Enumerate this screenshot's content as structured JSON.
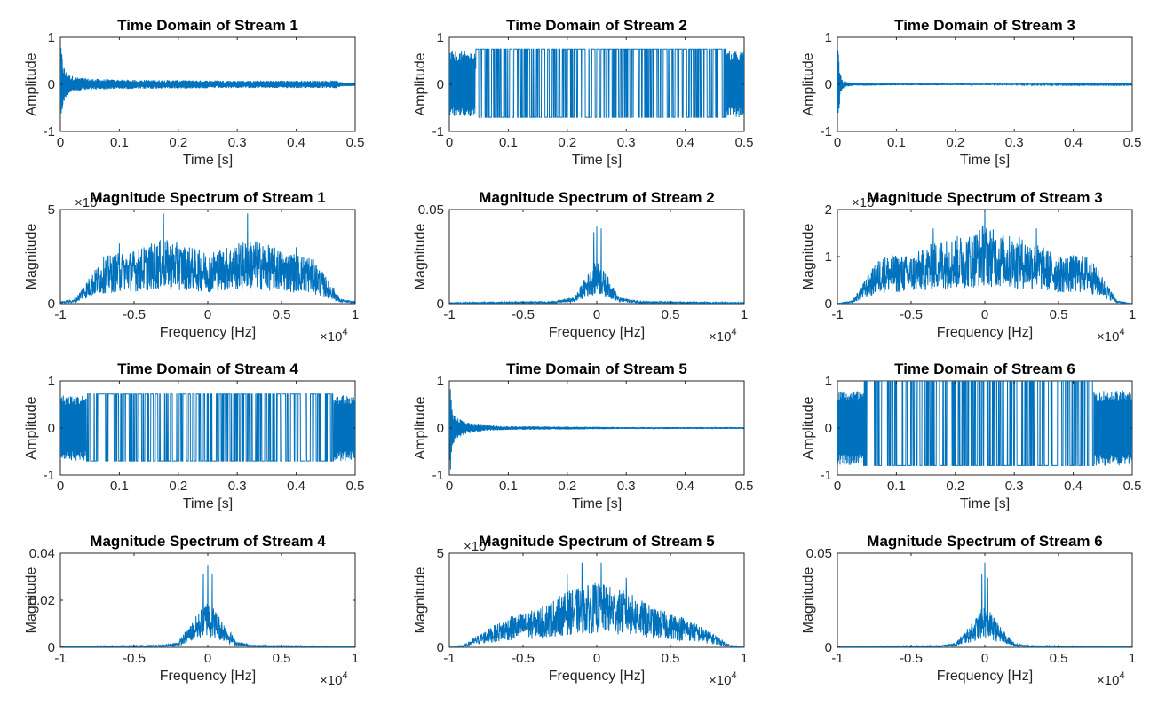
{
  "colors": {
    "line": "#0072BD",
    "axis": "#262626"
  },
  "chart_data": [
    {
      "type": "line",
      "title": "Time Domain of Stream 1",
      "xlabel": "Time [s]",
      "ylabel": "Amplitude",
      "xlim": [
        0,
        0.5
      ],
      "ylim": [
        -1,
        1
      ],
      "xticks": [
        0,
        0.1,
        0.2,
        0.3,
        0.4,
        0.5
      ],
      "xtick_labels": [
        "0",
        "0.1",
        "0.2",
        "0.3",
        "0.4",
        "0.5"
      ],
      "yticks": [
        -1,
        0,
        1
      ],
      "ytick_labels": [
        "-1",
        "0",
        "1"
      ],
      "exponent": "",
      "series": [
        {
          "x": [
            0.0,
            0.002,
            0.004,
            0.008,
            0.015,
            0.03,
            0.05,
            0.1,
            0.2,
            0.3,
            0.4,
            0.47,
            0.48,
            0.5
          ],
          "envelope": [
            0.8,
            0.75,
            0.5,
            0.3,
            0.2,
            0.15,
            0.12,
            0.1,
            0.09,
            0.08,
            0.08,
            0.08,
            0.04,
            0.04
          ]
        }
      ]
    },
    {
      "type": "line",
      "title": "Time Domain of Stream 2",
      "xlabel": "Time [s]",
      "ylabel": "Amplitude",
      "xlim": [
        0,
        0.5
      ],
      "ylim": [
        -1,
        1
      ],
      "xticks": [
        0,
        0.1,
        0.2,
        0.3,
        0.4,
        0.5
      ],
      "xtick_labels": [
        "0",
        "0.1",
        "0.2",
        "0.3",
        "0.4",
        "0.5"
      ],
      "yticks": [
        -1,
        0,
        1
      ],
      "ytick_labels": [
        "-1",
        "0",
        "1"
      ],
      "exponent": "",
      "series": [
        {
          "x": [
            0.0,
            0.044,
            0.045,
            0.469,
            0.47,
            0.5
          ],
          "high": [
            0.0,
            0.0,
            0.75,
            0.75,
            0.0,
            0.0
          ],
          "low": [
            -0.7,
            -0.7,
            -0.7,
            -0.7,
            -0.7,
            -0.7
          ],
          "noise_amp": 0.7
        }
      ]
    },
    {
      "type": "line",
      "title": "Time Domain of Stream 3",
      "xlabel": "Time [s]",
      "ylabel": "Amplitude",
      "xlim": [
        0,
        0.5
      ],
      "ylim": [
        -1,
        1
      ],
      "xticks": [
        0,
        0.1,
        0.2,
        0.3,
        0.4,
        0.5
      ],
      "xtick_labels": [
        "0",
        "0.1",
        "0.2",
        "0.3",
        "0.4",
        "0.5"
      ],
      "yticks": [
        -1,
        0,
        1
      ],
      "ytick_labels": [
        "-1",
        "0",
        "1"
      ],
      "exponent": "",
      "series": [
        {
          "x": [
            0.0,
            0.002,
            0.004,
            0.008,
            0.015,
            0.03,
            0.1,
            0.2,
            0.3,
            0.4,
            0.5
          ],
          "envelope": [
            0.6,
            0.95,
            0.3,
            0.1,
            0.05,
            0.03,
            0.02,
            0.02,
            0.015,
            0.01,
            0.01
          ]
        }
      ]
    },
    {
      "type": "line",
      "title": "Magnitude Spectrum of Stream 1",
      "xlabel": "Frequency [Hz]",
      "ylabel": "Magnitude",
      "xlim": [
        -1,
        1
      ],
      "ylim": [
        0,
        5
      ],
      "xticks": [
        -1,
        -0.5,
        0,
        0.5,
        1
      ],
      "xtick_labels": [
        "-1",
        "-0.5",
        "0",
        "0.5",
        "1"
      ],
      "yticks": [
        0,
        5
      ],
      "ytick_labels": [
        "0",
        "5"
      ],
      "xexponent": "4",
      "yexponent": "4",
      "series": [
        {
          "x": [
            -1,
            -0.9,
            -0.85,
            -0.7,
            -0.5,
            -0.3,
            -0.1,
            0,
            0.1,
            0.3,
            0.5,
            0.7,
            0.85,
            0.9,
            1
          ],
          "envelope": [
            0.1,
            0.2,
            0.8,
            2.2,
            2.5,
            3.0,
            2.6,
            2.4,
            2.6,
            3.0,
            2.5,
            2.2,
            0.8,
            0.2,
            0.1
          ],
          "peaks": [
            [
              -0.3,
              4.8
            ],
            [
              0.27,
              4.8
            ],
            [
              -0.6,
              3.2
            ],
            [
              0.6,
              3.0
            ]
          ]
        }
      ]
    },
    {
      "type": "line",
      "title": "Magnitude Spectrum of Stream 2",
      "xlabel": "Frequency [Hz]",
      "ylabel": "Magnitude",
      "xlim": [
        -1,
        1
      ],
      "ylim": [
        0,
        0.05
      ],
      "xticks": [
        -1,
        -0.5,
        0,
        0.5,
        1
      ],
      "xtick_labels": [
        "-1",
        "-0.5",
        "0",
        "0.5",
        "1"
      ],
      "yticks": [
        0,
        0.05
      ],
      "ytick_labels": [
        "0",
        "0.05"
      ],
      "xexponent": "4",
      "yexponent": "",
      "series": [
        {
          "x": [
            -1,
            -0.3,
            -0.15,
            -0.08,
            0,
            0.08,
            0.15,
            0.3,
            1
          ],
          "envelope": [
            0.0005,
            0.001,
            0.003,
            0.012,
            0.02,
            0.012,
            0.003,
            0.001,
            0.0005
          ],
          "peaks": [
            [
              0.0,
              0.041
            ],
            [
              -0.02,
              0.038
            ],
            [
              0.03,
              0.04
            ]
          ]
        }
      ]
    },
    {
      "type": "line",
      "title": "Magnitude Spectrum of Stream 3",
      "xlabel": "Frequency [Hz]",
      "ylabel": "Magnitude",
      "xlim": [
        -1,
        1
      ],
      "ylim": [
        0,
        2
      ],
      "xticks": [
        -1,
        -0.5,
        0,
        0.5,
        1
      ],
      "xtick_labels": [
        "-1",
        "-0.5",
        "0",
        "0.5",
        "1"
      ],
      "yticks": [
        0,
        1,
        2
      ],
      "ytick_labels": [
        "0",
        "1",
        "2"
      ],
      "xexponent": "4",
      "yexponent": "4",
      "series": [
        {
          "x": [
            -1,
            -0.9,
            -0.8,
            -0.7,
            -0.5,
            -0.3,
            -0.1,
            0,
            0.1,
            0.3,
            0.5,
            0.7,
            0.8,
            0.9,
            1
          ],
          "envelope": [
            0.0,
            0.05,
            0.5,
            0.9,
            0.9,
            1.2,
            1.3,
            1.5,
            1.3,
            1.2,
            0.9,
            0.9,
            0.5,
            0.05,
            0.0
          ],
          "peaks": [
            [
              0.0,
              2.05
            ],
            [
              -0.35,
              1.6
            ],
            [
              0.35,
              1.6
            ]
          ]
        }
      ]
    },
    {
      "type": "line",
      "title": "Time Domain of Stream 4",
      "xlabel": "Time [s]",
      "ylabel": "Amplitude",
      "xlim": [
        0,
        0.5
      ],
      "ylim": [
        -1,
        1
      ],
      "xticks": [
        0,
        0.1,
        0.2,
        0.3,
        0.4,
        0.5
      ],
      "xtick_labels": [
        "0",
        "0.1",
        "0.2",
        "0.3",
        "0.4",
        "0.5"
      ],
      "yticks": [
        -1,
        0,
        1
      ],
      "ytick_labels": [
        "-1",
        "0",
        "1"
      ],
      "exponent": "",
      "series": [
        {
          "x": [
            0.0,
            0.044,
            0.045,
            0.462,
            0.463,
            0.5
          ],
          "high": [
            0.0,
            0.0,
            0.72,
            0.72,
            0.0,
            0.0
          ],
          "low": [
            -0.7,
            -0.7,
            -0.7,
            -0.7,
            -0.7,
            -0.7
          ],
          "noise_amp": 0.7
        }
      ]
    },
    {
      "type": "line",
      "title": "Time Domain of Stream 5",
      "xlabel": "Time [s]",
      "ylabel": "Amplitude",
      "xlim": [
        0,
        0.5
      ],
      "ylim": [
        -1,
        1
      ],
      "xticks": [
        0,
        0.1,
        0.2,
        0.3,
        0.4,
        0.5
      ],
      "xtick_labels": [
        "0",
        "0.1",
        "0.2",
        "0.3",
        "0.4",
        "0.5"
      ],
      "yticks": [
        -1,
        0,
        1
      ],
      "ytick_labels": [
        "-1",
        "0",
        "1"
      ],
      "exponent": "",
      "series": [
        {
          "x": [
            0.0,
            0.002,
            0.004,
            0.008,
            0.015,
            0.03,
            0.06,
            0.1,
            0.2,
            0.3,
            0.4,
            0.5
          ],
          "envelope": [
            0.5,
            0.95,
            0.45,
            0.3,
            0.2,
            0.12,
            0.06,
            0.04,
            0.03,
            0.02,
            0.02,
            0.02
          ]
        }
      ]
    },
    {
      "type": "line",
      "title": "Time Domain of Stream 6",
      "xlabel": "Time [s]",
      "ylabel": "Amplitude",
      "xlim": [
        0,
        0.5
      ],
      "ylim": [
        -1,
        1
      ],
      "xticks": [
        0,
        0.1,
        0.2,
        0.3,
        0.4,
        0.5
      ],
      "xtick_labels": [
        "0",
        "0.1",
        "0.2",
        "0.3",
        "0.4",
        "0.5"
      ],
      "yticks": [
        -1,
        0,
        1
      ],
      "ytick_labels": [
        "-1",
        "0",
        "1"
      ],
      "exponent": "",
      "series": [
        {
          "x": [
            0.0,
            0.044,
            0.045,
            0.434,
            0.435,
            0.5
          ],
          "high": [
            0.0,
            0.0,
            1.0,
            1.0,
            0.0,
            0.0
          ],
          "low": [
            -0.8,
            -0.8,
            -0.8,
            -0.8,
            -0.8,
            -0.8
          ],
          "noise_amp": 0.8
        }
      ]
    },
    {
      "type": "line",
      "title": "Magnitude Spectrum of Stream 4",
      "xlabel": "Frequency [Hz]",
      "ylabel": "Magnitude",
      "xlim": [
        -1,
        1
      ],
      "ylim": [
        0,
        0.04
      ],
      "xticks": [
        -1,
        -0.5,
        0,
        0.5,
        1
      ],
      "xtick_labels": [
        "-1",
        "-0.5",
        "0",
        "0.5",
        "1"
      ],
      "yticks": [
        0,
        0.02,
        0.04
      ],
      "ytick_labels": [
        "0",
        "0.02",
        "0.04"
      ],
      "xexponent": "4",
      "yexponent": "",
      "series": [
        {
          "x": [
            -1,
            -0.3,
            -0.2,
            -0.1,
            0,
            0.1,
            0.2,
            0.3,
            1
          ],
          "envelope": [
            0.0003,
            0.0008,
            0.002,
            0.01,
            0.018,
            0.01,
            0.002,
            0.0008,
            0.0003
          ],
          "peaks": [
            [
              0.0,
              0.035
            ],
            [
              -0.03,
              0.031
            ],
            [
              0.03,
              0.031
            ]
          ]
        }
      ]
    },
    {
      "type": "line",
      "title": "Magnitude Spectrum of Stream 5",
      "xlabel": "Frequency [Hz]",
      "ylabel": "Magnitude",
      "xlim": [
        -1,
        1
      ],
      "ylim": [
        0,
        5
      ],
      "xticks": [
        -1,
        -0.5,
        0,
        0.5,
        1
      ],
      "xtick_labels": [
        "-1",
        "-0.5",
        "0",
        "0.5",
        "1"
      ],
      "yticks": [
        0,
        5
      ],
      "ytick_labels": [
        "0",
        "5"
      ],
      "xexponent": "4",
      "yexponent": "4",
      "series": [
        {
          "x": [
            -1,
            -0.9,
            -0.8,
            -0.6,
            -0.4,
            -0.2,
            0,
            0.2,
            0.4,
            0.6,
            0.8,
            0.9,
            1
          ],
          "envelope": [
            0.0,
            0.1,
            0.6,
            1.4,
            1.8,
            2.6,
            3.0,
            2.6,
            1.8,
            1.4,
            0.6,
            0.1,
            0.0
          ],
          "peaks": [
            [
              -0.1,
              4.5
            ],
            [
              0.03,
              4.5
            ],
            [
              -0.2,
              3.9
            ],
            [
              0.2,
              3.7
            ]
          ]
        }
      ]
    },
    {
      "type": "line",
      "title": "Magnitude Spectrum of Stream 6",
      "xlabel": "Frequency [Hz]",
      "ylabel": "Magnitude",
      "xlim": [
        -1,
        1
      ],
      "ylim": [
        0,
        0.05
      ],
      "xticks": [
        -1,
        -0.5,
        0,
        0.5,
        1
      ],
      "xtick_labels": [
        "-1",
        "-0.5",
        "0",
        "0.5",
        "1"
      ],
      "yticks": [
        0,
        0.05
      ],
      "ytick_labels": [
        "0",
        "0.05"
      ],
      "xexponent": "4",
      "yexponent": "",
      "series": [
        {
          "x": [
            -1,
            -0.3,
            -0.2,
            -0.1,
            0,
            0.1,
            0.2,
            0.3,
            1
          ],
          "envelope": [
            0.0003,
            0.0008,
            0.002,
            0.01,
            0.02,
            0.01,
            0.002,
            0.0008,
            0.0003
          ],
          "peaks": [
            [
              0.0,
              0.045
            ],
            [
              -0.02,
              0.039
            ],
            [
              0.02,
              0.037
            ]
          ]
        }
      ]
    }
  ]
}
